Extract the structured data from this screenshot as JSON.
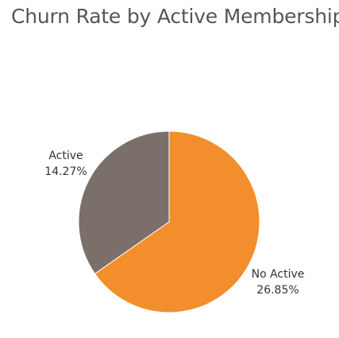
{
  "chart_data": {
    "type": "pie",
    "title": "Churn Rate by Active Membership",
    "slices": [
      {
        "label": "Active",
        "value_label": "14.27%",
        "share": 0.347,
        "color": "#7b6f6a"
      },
      {
        "label": "No Active",
        "value_label": "26.85%",
        "share": 0.653,
        "color": "#f28e2b"
      }
    ],
    "legend": "none"
  }
}
